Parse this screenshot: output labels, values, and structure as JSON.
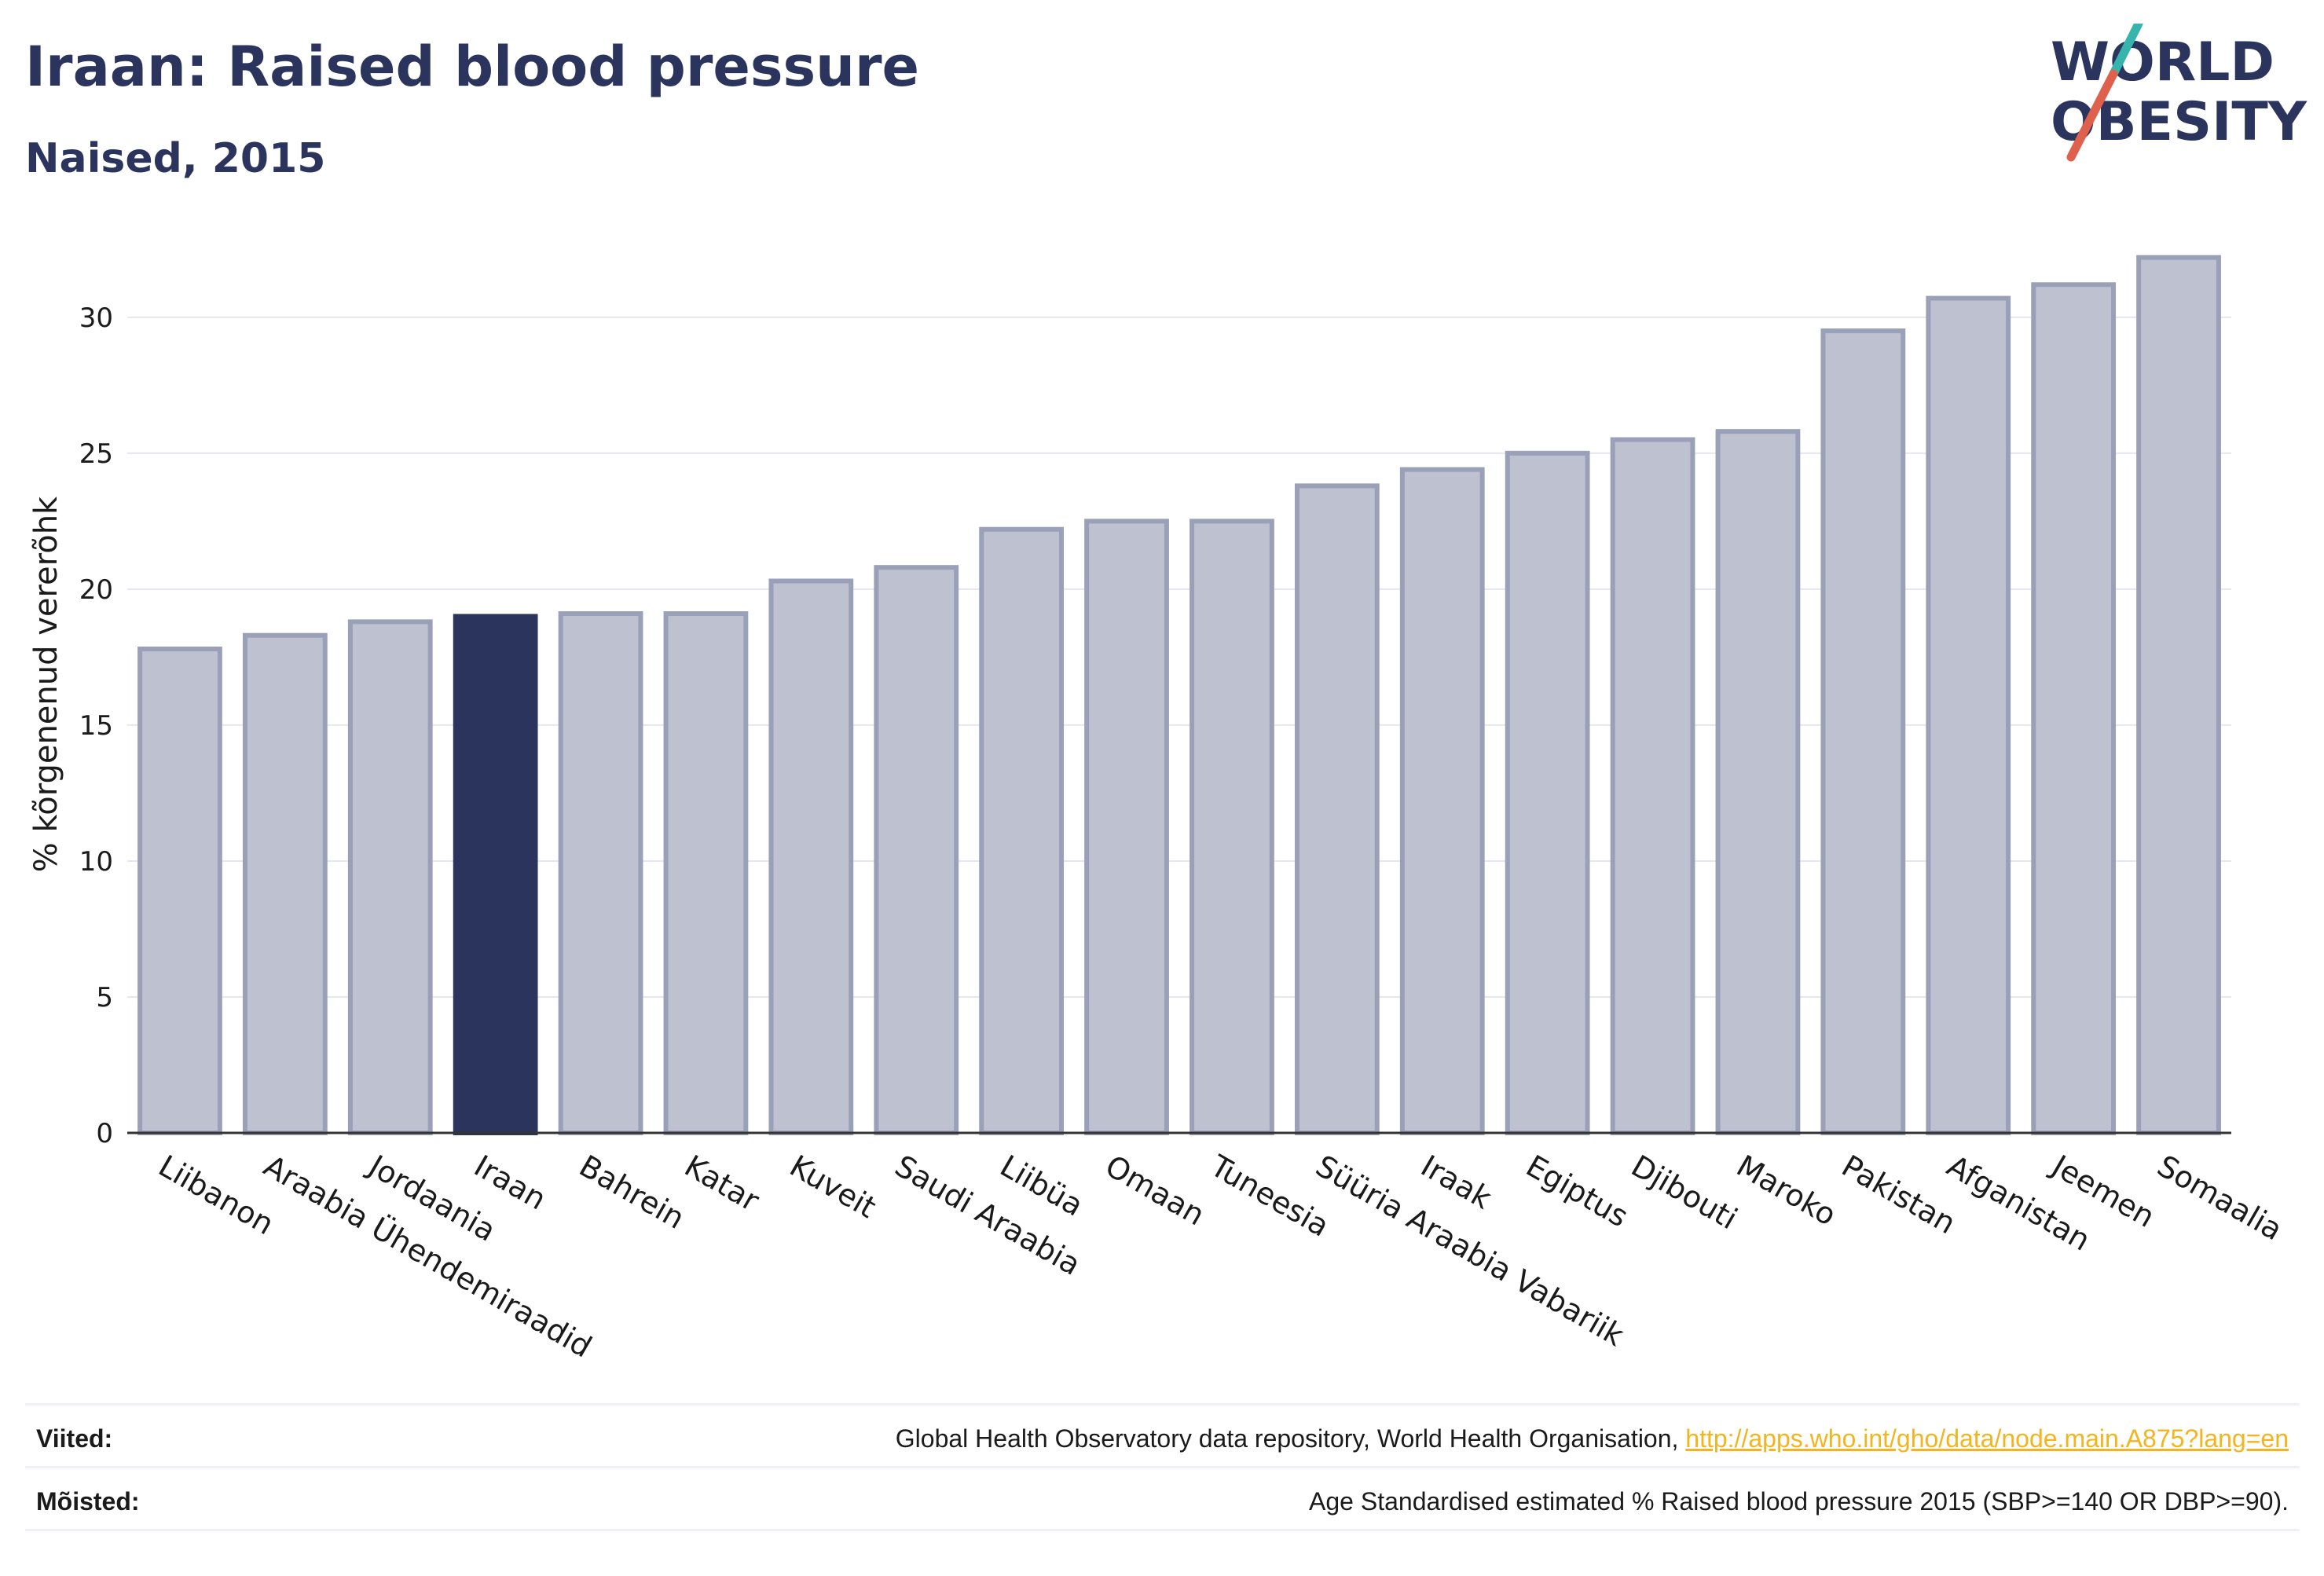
{
  "header": {
    "title": "Iraan: Raised blood pressure",
    "subtitle": "Naised, 2015",
    "logo_line1": "WORLD",
    "logo_line2": "OBESITY"
  },
  "colors": {
    "highlight": "#2a345c",
    "bar": "#bec1cf",
    "bar_edge": "#9aa0b8",
    "grid": "#e6e7ee",
    "logo_red": "#e0604e",
    "logo_teal": "#36b5ae",
    "link": "#f2b51f"
  },
  "chart_data": {
    "type": "bar",
    "title": "",
    "xlabel": "",
    "ylabel": "% kõrgenenud vererõhk",
    "ylim": [
      0,
      33
    ],
    "yticks": [
      0,
      5,
      10,
      15,
      20,
      25,
      30
    ],
    "categories": [
      "Liibanon",
      "Araabia Ühendemiraadid",
      "Jordaania",
      "Iraan",
      "Bahrein",
      "Katar",
      "Kuveit",
      "Saudi Araabia",
      "Liibüa",
      "Omaan",
      "Tuneesia",
      "Süüria Araabia Vabariik",
      "Iraak",
      "Egiptus",
      "Djibouti",
      "Maroko",
      "Pakistan",
      "Afganistan",
      "Jeemen",
      "Somaalia"
    ],
    "values": [
      17.8,
      18.3,
      18.8,
      19.0,
      19.1,
      19.1,
      20.3,
      20.8,
      22.2,
      22.5,
      22.5,
      23.8,
      24.4,
      25.0,
      25.5,
      25.8,
      29.5,
      30.7,
      31.2,
      32.2
    ],
    "highlight": "Iraan",
    "grid": true,
    "legend": "none"
  },
  "footer": {
    "sources_label": "Viited:",
    "sources_text": "Global Health Observatory data repository, World Health Organisation, ",
    "sources_link": "http://apps.who.int/gho/data/node.main.A875?lang=en",
    "definitions_label": "Mõisted:",
    "definitions_text": "Age Standardised estimated % Raised blood pressure 2015 (SBP>=140 OR DBP>=90)."
  }
}
